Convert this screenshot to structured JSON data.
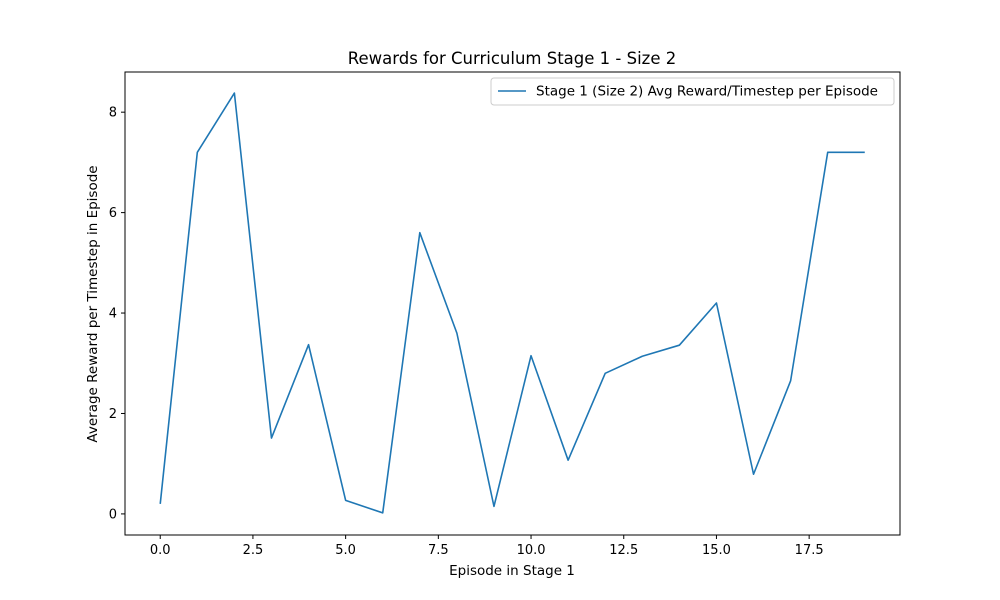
{
  "chart_data": {
    "type": "line",
    "title": "Rewards for Curriculum Stage 1 - Size 2",
    "xlabel": "Episode in Stage 1",
    "ylabel": "Average Reward per Timestep in Episode",
    "xlim": [
      -0.95,
      19.95
    ],
    "ylim": [
      -0.42,
      8.8
    ],
    "xticks": [
      0.0,
      2.5,
      5.0,
      7.5,
      10.0,
      12.5,
      15.0,
      17.5
    ],
    "xtick_labels": [
      "0.0",
      "2.5",
      "5.0",
      "7.5",
      "10.0",
      "12.5",
      "15.0",
      "17.5"
    ],
    "yticks": [
      0,
      2,
      4,
      6,
      8
    ],
    "ytick_labels": [
      "0",
      "2",
      "4",
      "6",
      "8"
    ],
    "grid": false,
    "legend_position": "top-right",
    "series": [
      {
        "name": "Stage 1 (Size 2) Avg Reward/Timestep per Episode",
        "color": "#1f77b4",
        "x": [
          0,
          1,
          2,
          3,
          4,
          5,
          6,
          7,
          8,
          9,
          10,
          11,
          12,
          13,
          14,
          15,
          16,
          17,
          18,
          19
        ],
        "y": [
          0.2,
          7.2,
          8.38,
          1.51,
          3.37,
          0.27,
          0.02,
          5.6,
          3.6,
          0.15,
          3.15,
          1.07,
          2.8,
          3.14,
          3.36,
          4.2,
          0.79,
          2.65,
          7.2,
          7.2
        ]
      }
    ]
  }
}
